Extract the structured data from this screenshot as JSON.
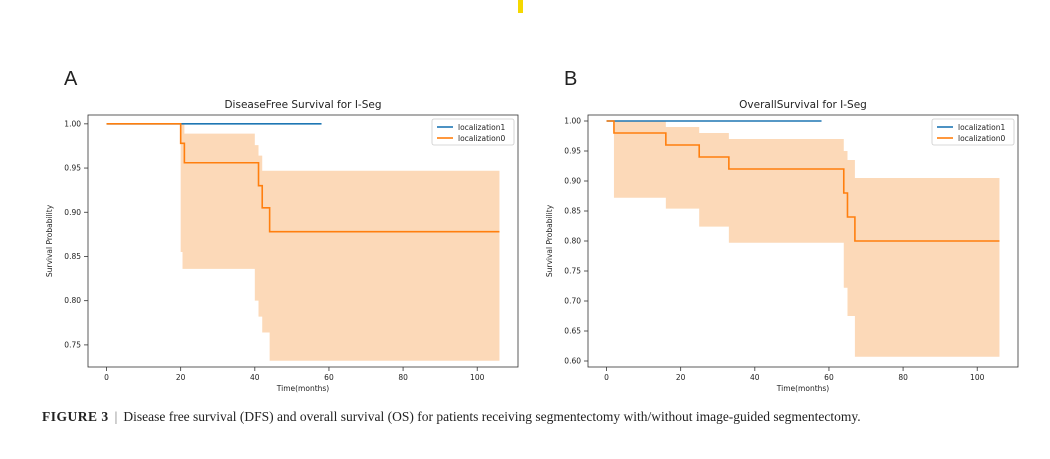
{
  "colors": {
    "localization1": "#1f77b4",
    "localization0": "#ff7f0e",
    "ci_fill": "#fcd9b8",
    "accent": "#f5d800"
  },
  "panel_labels": [
    "A",
    "B"
  ],
  "caption": {
    "label": "FIGURE 3",
    "separator": "|",
    "text": "Disease free survival (DFS) and overall survival (OS) for patients receiving segmentectomy with/without image-guided segmentectomy."
  },
  "chart_data": [
    {
      "type": "line",
      "title": "DiseaseFree Survival for I-Seg",
      "xlabel": "Time(months)",
      "ylabel": "Survival Probability",
      "xlim": [
        -5,
        111
      ],
      "ylim": [
        0.725,
        1.01
      ],
      "xticks": [
        0,
        20,
        40,
        60,
        80,
        100
      ],
      "xtick_labels": [
        "0",
        "20",
        "40",
        "60",
        "80",
        "100"
      ],
      "yticks": [
        0.75,
        0.8,
        0.85,
        0.9,
        0.95,
        1.0
      ],
      "ytick_labels": [
        "0.75",
        "0.80",
        "0.85",
        "0.90",
        "0.95",
        "1.00"
      ],
      "legend": "top-right",
      "series": [
        {
          "name": "localization1",
          "x": [
            0,
            58
          ],
          "y": [
            1.0,
            1.0
          ]
        },
        {
          "name": "localization0",
          "x": [
            0,
            20,
            20.5,
            21,
            40,
            41,
            42,
            44,
            106
          ],
          "y": [
            1.0,
            0.978,
            0.978,
            0.956,
            0.956,
            0.93,
            0.905,
            0.878,
            0.878
          ],
          "ci_upper": [
            1.0,
            1.0,
            1.0,
            0.989,
            0.976,
            0.964,
            0.947,
            0.947,
            0.947
          ],
          "ci_lower": [
            1.0,
            0.855,
            0.836,
            0.836,
            0.8,
            0.782,
            0.764,
            0.732,
            0.732
          ]
        }
      ]
    },
    {
      "type": "line",
      "title": "OverallSurvival for I-Seg",
      "xlabel": "Time(months)",
      "ylabel": "Survival Probability",
      "xlim": [
        -5,
        111
      ],
      "ylim": [
        0.59,
        1.01
      ],
      "xticks": [
        0,
        20,
        40,
        60,
        80,
        100
      ],
      "xtick_labels": [
        "0",
        "20",
        "40",
        "60",
        "80",
        "100"
      ],
      "yticks": [
        0.6,
        0.65,
        0.7,
        0.75,
        0.8,
        0.85,
        0.9,
        0.95,
        1.0
      ],
      "ytick_labels": [
        "0.60",
        "0.65",
        "0.70",
        "0.75",
        "0.80",
        "0.85",
        "0.90",
        "0.95",
        "1.00"
      ],
      "legend": "top-right",
      "series": [
        {
          "name": "localization1",
          "x": [
            0,
            58
          ],
          "y": [
            1.0,
            1.0
          ]
        },
        {
          "name": "localization0",
          "x": [
            0,
            2,
            16,
            25,
            33,
            64,
            65,
            67,
            106
          ],
          "y": [
            1.0,
            0.98,
            0.96,
            0.94,
            0.92,
            0.88,
            0.84,
            0.8,
            0.8
          ],
          "ci_upper": [
            1.0,
            1.0,
            0.99,
            0.98,
            0.97,
            0.95,
            0.935,
            0.905,
            0.905
          ],
          "ci_lower": [
            1.0,
            0.872,
            0.854,
            0.824,
            0.797,
            0.722,
            0.675,
            0.607,
            0.607
          ]
        }
      ]
    }
  ]
}
